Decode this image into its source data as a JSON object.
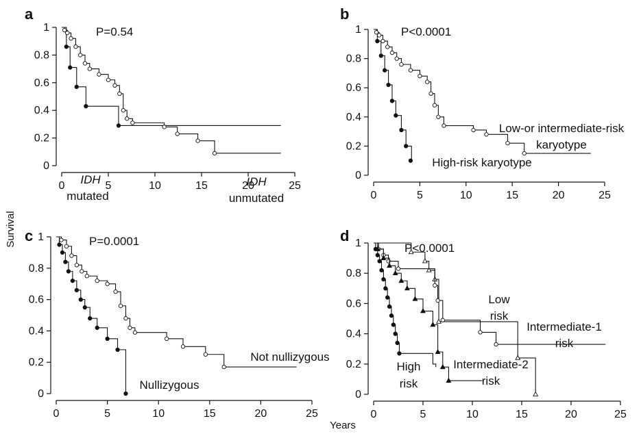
{
  "figure": {
    "ylabel": "Survival",
    "xlabel": "Years"
  },
  "chart_data": [
    {
      "type": "line",
      "panel": "a",
      "pvalue": "P=0.54",
      "xlim": [
        0,
        25
      ],
      "ylim": [
        0,
        1
      ],
      "xticks": [
        0,
        5,
        10,
        15,
        20,
        25
      ],
      "yticks": [
        0,
        0.2,
        0.4,
        0.6,
        0.8,
        1
      ],
      "annotations": [
        {
          "text": "IDH",
          "italic": true,
          "series": 0
        },
        {
          "text": "mutated",
          "italic": false,
          "series": 0
        },
        {
          "text": "IDH",
          "italic": true,
          "series": 1
        },
        {
          "text": "unmutated",
          "italic": false,
          "series": 1
        }
      ],
      "series": [
        {
          "marker": "filled-circle",
          "x": [
            0,
            0.5,
            0.9,
            1.6,
            2.6,
            6.1,
            23.5
          ],
          "y": [
            1,
            0.86,
            0.71,
            0.57,
            0.43,
            0.29,
            0.29
          ],
          "markers_x": [
            0.5,
            0.9,
            1.6,
            2.6,
            6.1
          ],
          "markers_y": [
            0.86,
            0.71,
            0.57,
            0.43,
            0.29
          ]
        },
        {
          "marker": "open-circle",
          "x": [
            0,
            0.3,
            0.6,
            1.0,
            1.5,
            2.0,
            2.5,
            3.0,
            4.0,
            5.0,
            5.7,
            6.2,
            6.6,
            7.0,
            7.6,
            11.0,
            12.4,
            14.6,
            16.4,
            23.5
          ],
          "y": [
            1,
            0.98,
            0.96,
            0.92,
            0.86,
            0.8,
            0.74,
            0.7,
            0.66,
            0.62,
            0.58,
            0.52,
            0.4,
            0.34,
            0.31,
            0.28,
            0.23,
            0.18,
            0.09,
            0.09
          ],
          "markers_x": [
            0.3,
            0.6,
            1.0,
            1.5,
            2.0,
            2.5,
            3.0,
            4.0,
            5.0,
            5.7,
            6.2,
            6.6,
            7.0,
            7.6,
            11.0,
            12.4,
            14.6,
            16.4
          ],
          "markers_y": [
            0.98,
            0.96,
            0.92,
            0.86,
            0.8,
            0.74,
            0.7,
            0.66,
            0.62,
            0.58,
            0.52,
            0.4,
            0.34,
            0.31,
            0.28,
            0.23,
            0.18,
            0.09
          ]
        }
      ]
    },
    {
      "type": "line",
      "panel": "b",
      "pvalue": "P<0.0001",
      "xlim": [
        0,
        25
      ],
      "ylim": [
        0,
        1
      ],
      "xticks": [
        0,
        5,
        10,
        15,
        20,
        25
      ],
      "yticks": [
        0,
        0.2,
        0.4,
        0.6,
        0.8,
        1
      ],
      "annotations": [
        {
          "text": "Low-or intermediate-risk",
          "italic": false,
          "series": 1
        },
        {
          "text": "karyotype",
          "italic": false,
          "series": 1
        },
        {
          "text": "High-risk karyotype",
          "italic": false,
          "series": 0
        }
      ],
      "series": [
        {
          "marker": "filled-circle",
          "x": [
            0,
            0.4,
            0.8,
            1.2,
            1.6,
            2.0,
            2.4,
            3.0,
            3.5,
            4.1
          ],
          "y": [
            1,
            0.92,
            0.82,
            0.72,
            0.62,
            0.51,
            0.41,
            0.31,
            0.2,
            0.1
          ],
          "markers_x": [
            0.4,
            0.8,
            1.2,
            1.6,
            2.0,
            2.4,
            3.0,
            3.5,
            4.0
          ],
          "markers_y": [
            0.92,
            0.82,
            0.72,
            0.62,
            0.51,
            0.41,
            0.31,
            0.2,
            0.1
          ]
        },
        {
          "marker": "open-circle",
          "x": [
            0,
            0.3,
            0.6,
            1.0,
            1.5,
            2.0,
            2.5,
            3.0,
            4.0,
            5.0,
            5.8,
            6.2,
            6.6,
            7.0,
            7.6,
            10.8,
            12.2,
            14.5,
            16.3,
            23.5
          ],
          "y": [
            1,
            0.98,
            0.96,
            0.92,
            0.88,
            0.84,
            0.8,
            0.76,
            0.72,
            0.68,
            0.64,
            0.56,
            0.48,
            0.4,
            0.34,
            0.31,
            0.28,
            0.22,
            0.15,
            0.15
          ],
          "markers_x": [
            0.3,
            0.6,
            1.0,
            1.5,
            2.0,
            2.5,
            3.0,
            4.0,
            5.0,
            5.8,
            6.2,
            6.6,
            7.0,
            7.6,
            10.8,
            12.2,
            14.5,
            16.3
          ],
          "markers_y": [
            0.98,
            0.96,
            0.92,
            0.88,
            0.84,
            0.8,
            0.76,
            0.72,
            0.68,
            0.64,
            0.56,
            0.48,
            0.4,
            0.34,
            0.31,
            0.28,
            0.22,
            0.15
          ]
        }
      ]
    },
    {
      "type": "line",
      "panel": "c",
      "pvalue": "P=0.0001",
      "xlim": [
        0,
        25
      ],
      "ylim": [
        0,
        1
      ],
      "xticks": [
        0,
        5,
        10,
        15,
        20,
        25
      ],
      "yticks": [
        0,
        0.2,
        0.4,
        0.6,
        0.8,
        1
      ],
      "annotations": [
        {
          "text": "Not nullizygous",
          "italic": false,
          "series": 1
        },
        {
          "text": "Nullizygous",
          "italic": false,
          "series": 0
        }
      ],
      "series": [
        {
          "marker": "filled-circle",
          "x": [
            0,
            0.3,
            0.6,
            0.9,
            1.2,
            1.6,
            2.0,
            2.4,
            2.8,
            3.3,
            4.0,
            5.0,
            6.0,
            6.8
          ],
          "y": [
            1,
            0.95,
            0.9,
            0.84,
            0.78,
            0.72,
            0.66,
            0.6,
            0.55,
            0.48,
            0.42,
            0.35,
            0.28,
            0
          ],
          "markers_x": [
            0.3,
            0.6,
            0.9,
            1.2,
            1.6,
            2.0,
            2.4,
            2.8,
            3.3,
            4.0,
            5.0,
            6.0,
            6.8
          ],
          "markers_y": [
            0.95,
            0.9,
            0.84,
            0.78,
            0.72,
            0.66,
            0.6,
            0.55,
            0.48,
            0.42,
            0.35,
            0.28,
            0
          ]
        },
        {
          "marker": "open-circle",
          "x": [
            0,
            0.5,
            1.0,
            1.5,
            2.0,
            2.5,
            3.0,
            4.0,
            5.0,
            5.8,
            6.3,
            6.8,
            7.2,
            7.7,
            10.8,
            12.4,
            14.6,
            16.4,
            23.5
          ],
          "y": [
            1,
            0.98,
            0.94,
            0.88,
            0.82,
            0.78,
            0.75,
            0.72,
            0.7,
            0.65,
            0.56,
            0.48,
            0.42,
            0.39,
            0.35,
            0.3,
            0.25,
            0.17,
            0.17
          ],
          "markers_x": [
            0.5,
            1.0,
            1.5,
            2.0,
            2.5,
            3.0,
            4.0,
            5.0,
            5.8,
            6.3,
            6.8,
            7.2,
            7.7,
            10.8,
            12.4,
            14.6,
            16.4
          ],
          "markers_y": [
            0.98,
            0.94,
            0.88,
            0.82,
            0.78,
            0.75,
            0.72,
            0.7,
            0.65,
            0.56,
            0.48,
            0.42,
            0.39,
            0.35,
            0.3,
            0.25,
            0.17
          ]
        }
      ]
    },
    {
      "type": "line",
      "panel": "d",
      "pvalue": "P<0.0001",
      "xlim": [
        0,
        25
      ],
      "ylim": [
        0,
        1
      ],
      "xticks": [
        0,
        5,
        10,
        15,
        20,
        25
      ],
      "yticks": [
        0,
        0.2,
        0.4,
        0.6,
        0.8,
        1
      ],
      "annotations": [
        {
          "text": "Low",
          "italic": false,
          "series": 0
        },
        {
          "text": "risk",
          "italic": false,
          "series": 0
        },
        {
          "text": "Intermediate-1",
          "italic": false,
          "series": 1
        },
        {
          "text": "risk",
          "italic": false,
          "series": 1
        },
        {
          "text": "Intermediate-2",
          "italic": false,
          "series": 2
        },
        {
          "text": "risk",
          "italic": false,
          "series": 2
        },
        {
          "text": "High",
          "italic": false,
          "series": 3
        },
        {
          "text": "risk",
          "italic": false,
          "series": 3
        }
      ],
      "series": [
        {
          "marker": "open-triangle",
          "x": [
            0,
            3.8,
            5.2,
            5.6,
            6.2,
            6.6,
            14.6,
            16.4
          ],
          "y": [
            1,
            0.94,
            0.88,
            0.82,
            0.76,
            0.48,
            0.24,
            0
          ],
          "markers_x": [
            3.8,
            5.2,
            5.6,
            6.2,
            6.6,
            14.6,
            16.4
          ],
          "markers_y": [
            0.94,
            0.88,
            0.82,
            0.76,
            0.48,
            0.24,
            0
          ]
        },
        {
          "marker": "open-circle",
          "x": [
            0,
            0.5,
            1.0,
            1.5,
            2.5,
            6.2,
            6.5,
            7.0,
            10.8,
            12.4,
            23.5
          ],
          "y": [
            1,
            0.96,
            0.92,
            0.88,
            0.83,
            0.72,
            0.62,
            0.49,
            0.41,
            0.33,
            0.33
          ],
          "markers_x": [
            0.5,
            1.0,
            1.5,
            2.5,
            6.2,
            6.5,
            7.0,
            10.8,
            12.4
          ],
          "markers_y": [
            0.96,
            0.92,
            0.88,
            0.83,
            0.72,
            0.62,
            0.49,
            0.41,
            0.33
          ]
        },
        {
          "marker": "filled-triangle",
          "x": [
            0,
            0.4,
            1.0,
            1.6,
            2.2,
            2.8,
            3.4,
            4.2,
            5.0,
            6.0,
            6.5,
            7.0,
            7.6,
            11.0
          ],
          "y": [
            1,
            0.96,
            0.9,
            0.85,
            0.8,
            0.75,
            0.7,
            0.63,
            0.55,
            0.46,
            0.28,
            0.18,
            0.09,
            0.09
          ],
          "markers_x": [
            0.4,
            1.0,
            1.6,
            2.2,
            2.8,
            3.4,
            4.2,
            5.0,
            6.0,
            6.5,
            7.0,
            7.6
          ],
          "markers_y": [
            0.96,
            0.9,
            0.85,
            0.8,
            0.75,
            0.7,
            0.63,
            0.55,
            0.46,
            0.28,
            0.18,
            0.09
          ]
        },
        {
          "marker": "filled-circle",
          "x": [
            0,
            0.2,
            0.4,
            0.6,
            0.8,
            1.0,
            1.2,
            1.4,
            1.6,
            1.8,
            2.0,
            2.2,
            2.4,
            2.6,
            5.0,
            6.0,
            6.3
          ],
          "y": [
            1,
            0.96,
            0.92,
            0.88,
            0.82,
            0.76,
            0.7,
            0.64,
            0.58,
            0.52,
            0.46,
            0.4,
            0.34,
            0.27,
            0.27,
            0.2,
            0.18
          ],
          "markers_x": [
            0.2,
            0.4,
            0.6,
            0.8,
            1.0,
            1.2,
            1.4,
            1.6,
            1.8,
            2.0,
            2.2,
            2.4,
            2.6
          ],
          "markers_y": [
            0.96,
            0.92,
            0.88,
            0.82,
            0.76,
            0.7,
            0.64,
            0.58,
            0.52,
            0.46,
            0.4,
            0.34,
            0.27
          ]
        }
      ]
    }
  ]
}
